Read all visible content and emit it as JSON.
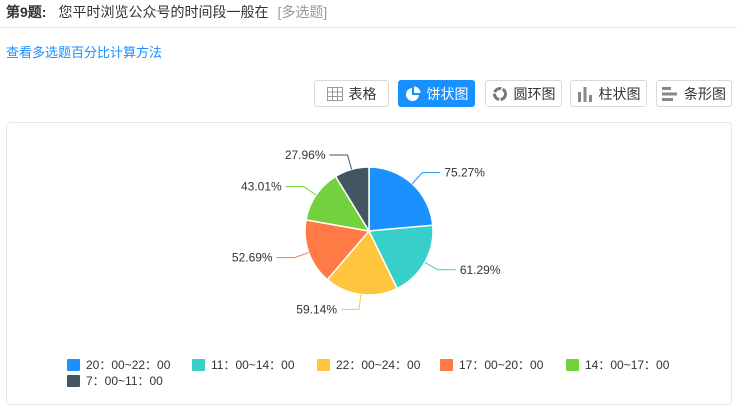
{
  "question": {
    "number_label": "第9题:",
    "text": "您平时浏览公众号的时间段一般在",
    "type_label": "[多选题]"
  },
  "calc_link": "查看多选题百分比计算方法",
  "views": [
    {
      "label": "表格",
      "icon": "table-icon",
      "active": false
    },
    {
      "label": "饼状图",
      "icon": "pie-chart-icon",
      "active": true
    },
    {
      "label": "圆环图",
      "icon": "donut-chart-icon",
      "active": false
    },
    {
      "label": "柱状图",
      "icon": "bar-chart-icon",
      "active": false
    },
    {
      "label": "条形图",
      "icon": "horizontal-bar-chart-icon",
      "active": false
    }
  ],
  "chart_data": {
    "type": "pie",
    "title": "",
    "legend_position": "bottom",
    "slices": [
      {
        "name": "20：00~22：00",
        "value": 75.27,
        "label": "75.27%",
        "color": "#1a91ff"
      },
      {
        "name": "11：00~14：00",
        "value": 61.29,
        "label": "61.29%",
        "color": "#36cfc9"
      },
      {
        "name": "22：00~24：00",
        "value": 59.14,
        "label": "59.14%",
        "color": "#ffc53d"
      },
      {
        "name": "17：00~20：00",
        "value": 52.69,
        "label": "52.69%",
        "color": "#ff7a45"
      },
      {
        "name": "14：00~17：00",
        "value": 43.01,
        "label": "43.01%",
        "color": "#73d13d"
      },
      {
        "name": "7：00~11：00",
        "value": 27.96,
        "label": "27.96%",
        "color": "#435561"
      }
    ]
  }
}
